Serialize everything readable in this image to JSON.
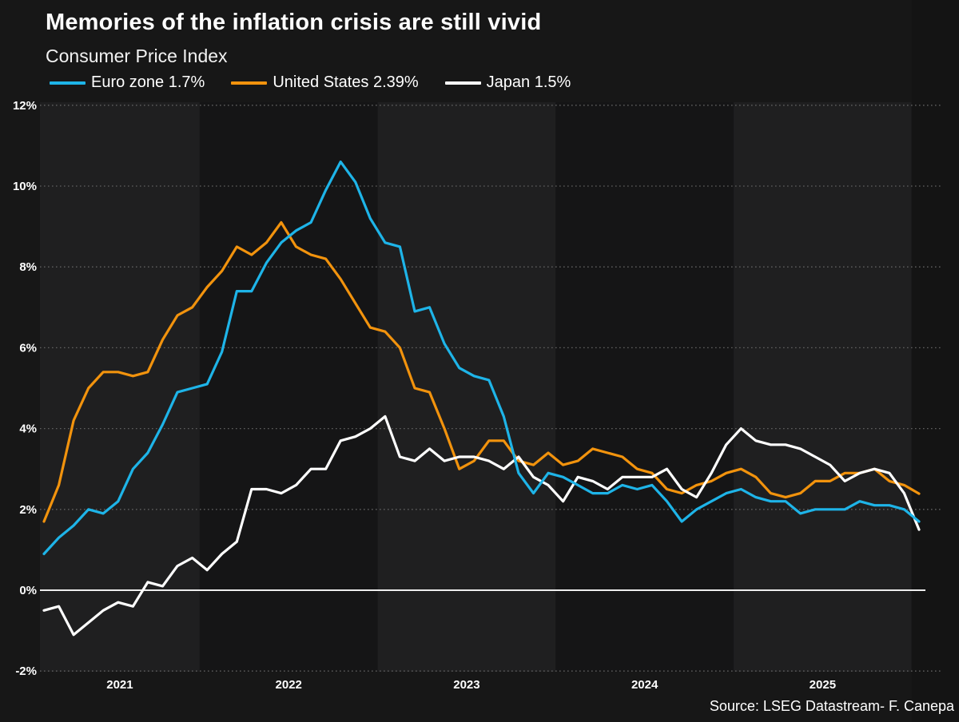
{
  "header": {
    "title": "Memories of the inflation crisis are still vivid",
    "subtitle": "Consumer Price Index"
  },
  "legend": {
    "items": [
      {
        "label": "Euro zone 1.7%",
        "color": "#1eb4e8"
      },
      {
        "label": "United States 2.39%",
        "color": "#f2930d"
      },
      {
        "label": "Japan 1.5%",
        "color": "#ffffff"
      }
    ]
  },
  "source": "Source: LSEG Datastream- F. Canepa",
  "colors": {
    "background": "#171717",
    "band_light": "#1f1f20",
    "band_dark": "#151516",
    "right_margin": "#141414",
    "grid_dotted": "#616161",
    "zero_line": "#ededed",
    "axis_text": "#ffffff"
  },
  "chart_data": {
    "type": "line",
    "title": "Consumer Price Index",
    "interval": "monthly",
    "x_start": "2021-02",
    "x_tick_labels": [
      "2021",
      "2022",
      "2023",
      "2024",
      "2025"
    ],
    "y_tick_labels": [
      "12%",
      "10%",
      "8%",
      "6%",
      "4%",
      "2%",
      "0%",
      "-2%"
    ],
    "y_tick_values": [
      12,
      10,
      8,
      6,
      4,
      2,
      0,
      -2
    ],
    "ylim": [
      -2.6,
      12.4
    ],
    "grid": "dotted horizontal every 2%, solid line at 0%",
    "legend_position": "top",
    "series": [
      {
        "name": "Euro zone",
        "latest_label": "1.7%",
        "color": "#1eb4e8",
        "values": [
          0.9,
          1.3,
          1.6,
          2.0,
          1.9,
          2.2,
          3.0,
          3.4,
          4.1,
          4.9,
          5.0,
          5.1,
          5.9,
          7.4,
          7.4,
          8.1,
          8.6,
          8.9,
          9.1,
          9.9,
          10.6,
          10.1,
          9.2,
          8.6,
          8.5,
          6.9,
          7.0,
          6.1,
          5.5,
          5.3,
          5.2,
          4.3,
          2.9,
          2.4,
          2.9,
          2.8,
          2.6,
          2.4,
          2.4,
          2.6,
          2.5,
          2.6,
          2.2,
          1.7,
          2.0,
          2.2,
          2.4,
          2.5,
          2.3,
          2.2,
          2.2,
          1.9,
          2.0,
          2.0,
          2.0,
          2.2,
          2.1,
          2.1,
          2.0,
          1.7
        ]
      },
      {
        "name": "United States",
        "latest_label": "2.39%",
        "color": "#f2930d",
        "values": [
          1.7,
          2.6,
          4.2,
          5.0,
          5.4,
          5.4,
          5.3,
          5.4,
          6.2,
          6.8,
          7.0,
          7.5,
          7.9,
          8.5,
          8.3,
          8.6,
          9.1,
          8.5,
          8.3,
          8.2,
          7.7,
          7.1,
          6.5,
          6.4,
          6.0,
          5.0,
          4.9,
          4.0,
          3.0,
          3.2,
          3.7,
          3.7,
          3.2,
          3.1,
          3.4,
          3.1,
          3.2,
          3.5,
          3.4,
          3.3,
          3.0,
          2.9,
          2.5,
          2.4,
          2.6,
          2.7,
          2.9,
          3.0,
          2.8,
          2.4,
          2.3,
          2.4,
          2.7,
          2.7,
          2.9,
          2.9,
          3.0,
          2.7,
          2.6,
          2.39
        ]
      },
      {
        "name": "Japan",
        "latest_label": "1.5%",
        "color": "#ffffff",
        "values": [
          -0.5,
          -0.4,
          -1.1,
          -0.8,
          -0.5,
          -0.3,
          -0.4,
          0.2,
          0.1,
          0.6,
          0.8,
          0.5,
          0.9,
          1.2,
          2.5,
          2.5,
          2.4,
          2.6,
          3.0,
          3.0,
          3.7,
          3.8,
          4.0,
          4.3,
          3.3,
          3.2,
          3.5,
          3.2,
          3.3,
          3.3,
          3.2,
          3.0,
          3.3,
          2.8,
          2.6,
          2.2,
          2.8,
          2.7,
          2.5,
          2.8,
          2.8,
          2.8,
          3.0,
          2.5,
          2.3,
          2.9,
          3.6,
          4.0,
          3.7,
          3.6,
          3.6,
          3.5,
          3.3,
          3.1,
          2.7,
          2.9,
          3.0,
          2.9,
          2.4,
          1.5
        ]
      }
    ]
  }
}
